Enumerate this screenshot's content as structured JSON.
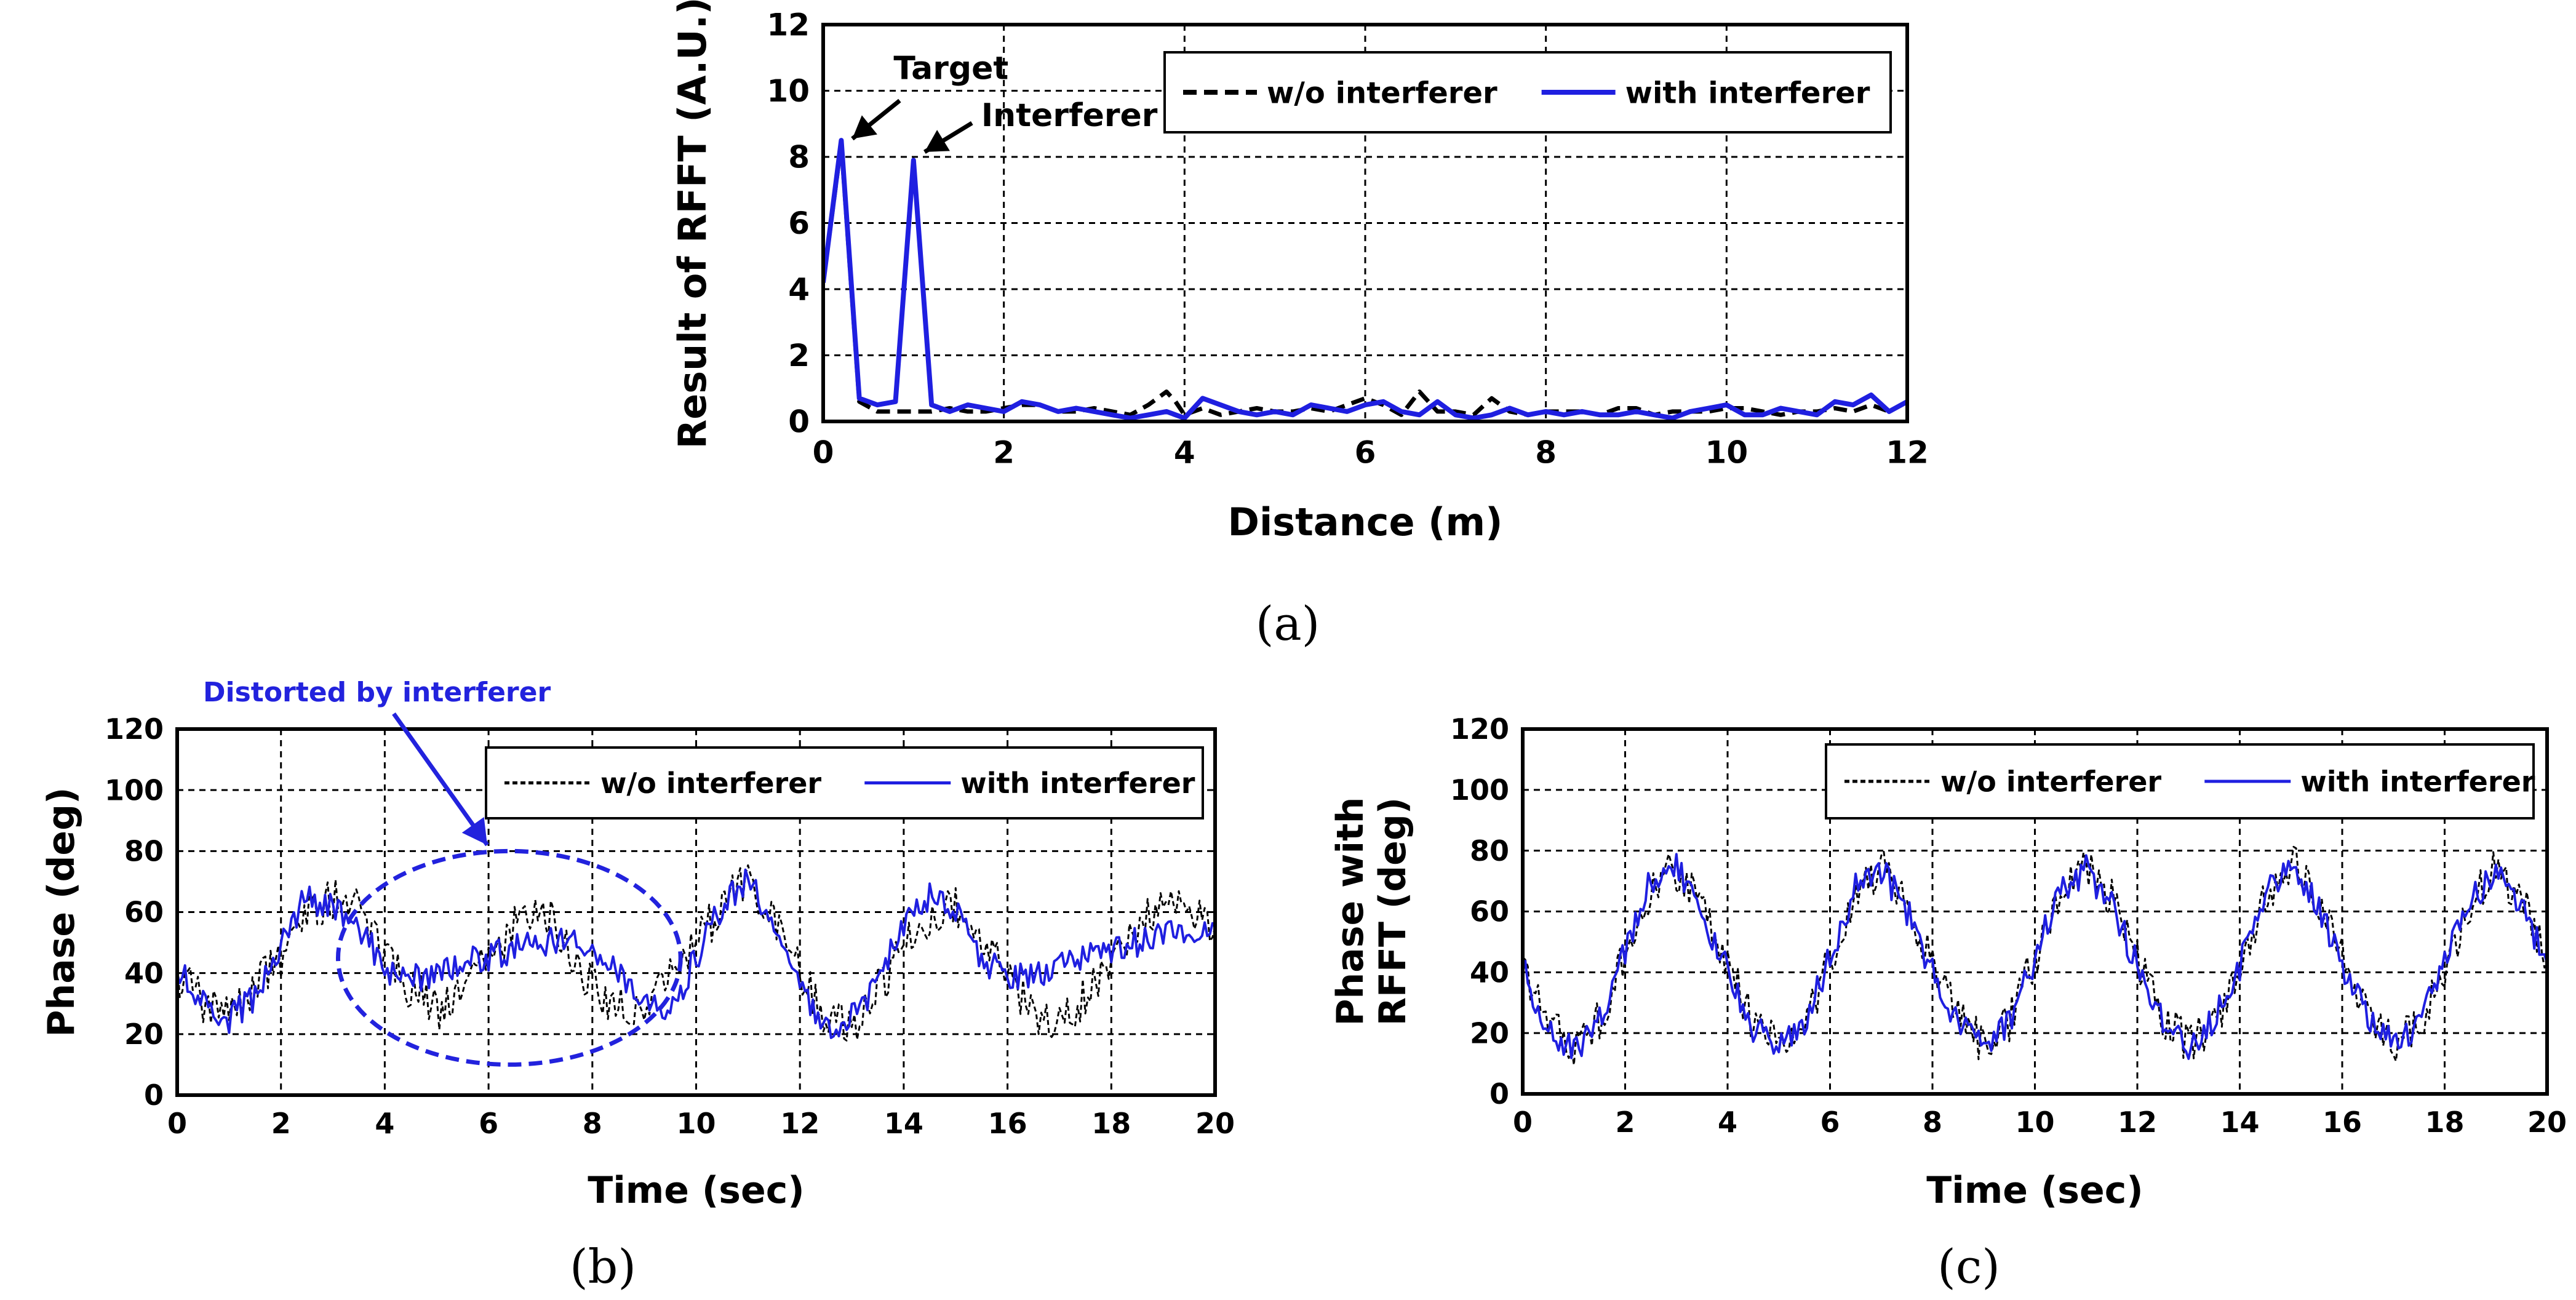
{
  "colors": {
    "without": "#000000",
    "with": "#1f1fe0",
    "annotation_blue": "#2222dd",
    "grid": "#000000"
  },
  "chart_data": [
    {
      "id": "a",
      "type": "line",
      "caption": "(a)",
      "xlabel": "Distance (m)",
      "ylabel": "Result of RFFT (A.U.)",
      "xlim": [
        0,
        12
      ],
      "ylim": [
        0,
        12
      ],
      "xticks": [
        "0",
        "2",
        "4",
        "6",
        "8",
        "10",
        "12"
      ],
      "yticks": [
        "0",
        "2",
        "4",
        "6",
        "8",
        "10",
        "12"
      ],
      "grid": true,
      "legend_position": "top-right",
      "annotations": [
        {
          "text": "Target",
          "x": 0.2,
          "y": 8.4
        },
        {
          "text": "Interferer",
          "x": 1.0,
          "y": 8.0
        }
      ],
      "series": [
        {
          "name": "w/o interferer",
          "style": "dashed",
          "x": [
            0,
            0.2,
            0.4,
            0.6,
            0.8,
            1.0,
            1.2,
            1.4,
            1.6,
            1.8,
            2.0,
            2.2,
            2.4,
            2.6,
            2.8,
            3.0,
            3.2,
            3.4,
            3.6,
            3.8,
            3.9,
            4.0,
            4.2,
            4.4,
            4.6,
            4.8,
            5.0,
            5.2,
            5.4,
            5.6,
            5.8,
            6.0,
            6.2,
            6.4,
            6.6,
            6.8,
            7.0,
            7.2,
            7.4,
            7.6,
            7.8,
            8.0,
            8.2,
            8.4,
            8.6,
            8.8,
            9.0,
            9.2,
            9.4,
            9.6,
            9.8,
            10.0,
            10.2,
            10.4,
            10.6,
            10.8,
            11.0,
            11.2,
            11.4,
            11.6,
            11.8,
            12.0
          ],
          "values": [
            4.2,
            8.4,
            0.6,
            0.3,
            0.3,
            0.3,
            0.3,
            0.4,
            0.3,
            0.3,
            0.4,
            0.5,
            0.5,
            0.3,
            0.3,
            0.4,
            0.3,
            0.2,
            0.5,
            0.9,
            0.6,
            0.2,
            0.4,
            0.2,
            0.3,
            0.4,
            0.3,
            0.3,
            0.4,
            0.3,
            0.5,
            0.7,
            0.5,
            0.2,
            0.9,
            0.3,
            0.3,
            0.2,
            0.7,
            0.3,
            0.2,
            0.3,
            0.3,
            0.3,
            0.2,
            0.4,
            0.4,
            0.2,
            0.3,
            0.3,
            0.3,
            0.4,
            0.4,
            0.3,
            0.2,
            0.3,
            0.3,
            0.4,
            0.3,
            0.5,
            0.3,
            0.6
          ]
        },
        {
          "name": "with interferer",
          "style": "solid",
          "x": [
            0,
            0.2,
            0.4,
            0.6,
            0.8,
            1.0,
            1.2,
            1.4,
            1.6,
            1.8,
            2.0,
            2.2,
            2.4,
            2.6,
            2.8,
            3.0,
            3.2,
            3.4,
            3.6,
            3.8,
            4.0,
            4.2,
            4.4,
            4.6,
            4.8,
            5.0,
            5.2,
            5.4,
            5.6,
            5.8,
            6.0,
            6.2,
            6.4,
            6.6,
            6.8,
            7.0,
            7.2,
            7.4,
            7.6,
            7.8,
            8.0,
            8.2,
            8.4,
            8.6,
            8.8,
            9.0,
            9.2,
            9.4,
            9.6,
            9.8,
            10.0,
            10.2,
            10.4,
            10.6,
            10.8,
            11.0,
            11.2,
            11.4,
            11.6,
            11.8,
            12.0
          ],
          "values": [
            4.2,
            8.5,
            0.7,
            0.5,
            0.6,
            7.9,
            0.5,
            0.3,
            0.5,
            0.4,
            0.3,
            0.6,
            0.5,
            0.3,
            0.4,
            0.3,
            0.2,
            0.1,
            0.2,
            0.3,
            0.1,
            0.7,
            0.5,
            0.3,
            0.2,
            0.3,
            0.2,
            0.5,
            0.4,
            0.3,
            0.5,
            0.6,
            0.3,
            0.2,
            0.6,
            0.2,
            0.1,
            0.2,
            0.4,
            0.2,
            0.3,
            0.2,
            0.3,
            0.2,
            0.2,
            0.3,
            0.2,
            0.1,
            0.3,
            0.4,
            0.5,
            0.2,
            0.2,
            0.4,
            0.3,
            0.2,
            0.6,
            0.5,
            0.8,
            0.3,
            0.6
          ]
        }
      ]
    },
    {
      "id": "b",
      "type": "line",
      "caption": "(b)",
      "xlabel": "Time (sec)",
      "ylabel": "Phase (deg)",
      "xlim": [
        0,
        20
      ],
      "ylim": [
        0,
        120
      ],
      "xticks": [
        "0",
        "2",
        "4",
        "6",
        "8",
        "10",
        "12",
        "14",
        "16",
        "18",
        "20"
      ],
      "yticks": [
        "0",
        "20",
        "40",
        "60",
        "80",
        "100",
        "120"
      ],
      "grid": true,
      "legend_position": "top-right",
      "annotations": [
        {
          "text": "Distorted by interferer",
          "x": 5.5,
          "y": 80
        }
      ],
      "highlight_ellipse": {
        "cx": 6.4,
        "cy": 45,
        "rx": 3.3,
        "ry": 35
      },
      "series": [
        {
          "name": "w/o interferer",
          "style": "dashed",
          "x": [
            0,
            0.5,
            1.0,
            1.5,
            2.0,
            2.5,
            3.0,
            3.5,
            4.0,
            4.5,
            5.0,
            5.5,
            6.0,
            6.5,
            7.0,
            7.5,
            8.0,
            8.5,
            9.0,
            9.5,
            10.0,
            10.5,
            11.0,
            11.5,
            12.0,
            12.5,
            13.0,
            13.5,
            14.0,
            14.5,
            15.0,
            15.5,
            16.0,
            16.5,
            17.0,
            17.5,
            18.0,
            18.5,
            19.0,
            19.5,
            20.0
          ],
          "values": [
            40,
            30,
            25,
            35,
            45,
            60,
            65,
            60,
            45,
            35,
            28,
            32,
            45,
            55,
            62,
            50,
            35,
            28,
            30,
            38,
            50,
            62,
            70,
            60,
            40,
            25,
            22,
            35,
            48,
            58,
            62,
            52,
            38,
            27,
            25,
            32,
            45,
            55,
            62,
            60,
            55
          ]
        },
        {
          "name": "with interferer",
          "style": "solid",
          "x": [
            0,
            0.5,
            1.0,
            1.5,
            2.0,
            2.5,
            3.0,
            3.5,
            4.0,
            4.5,
            5.0,
            5.5,
            6.0,
            6.5,
            7.0,
            7.5,
            8.0,
            8.5,
            9.0,
            9.5,
            10.0,
            10.5,
            11.0,
            11.5,
            12.0,
            12.5,
            13.0,
            13.5,
            14.0,
            14.5,
            15.0,
            15.5,
            16.0,
            16.5,
            17.0,
            17.5,
            18.0,
            18.5,
            19.0,
            19.5,
            20.0
          ],
          "values": [
            40,
            32,
            25,
            32,
            50,
            65,
            62,
            55,
            42,
            38,
            40,
            45,
            45,
            48,
            50,
            52,
            48,
            40,
            32,
            28,
            45,
            62,
            70,
            58,
            35,
            22,
            25,
            38,
            55,
            65,
            62,
            45,
            38,
            40,
            42,
            45,
            48,
            50,
            52,
            55,
            55
          ]
        }
      ]
    },
    {
      "id": "c",
      "type": "line",
      "caption": "(c)",
      "xlabel": "Time (sec)",
      "ylabel": "Phase with RFFT (deg)",
      "xlim": [
        0,
        20
      ],
      "ylim": [
        0,
        120
      ],
      "xticks": [
        "0",
        "2",
        "4",
        "6",
        "8",
        "10",
        "12",
        "14",
        "16",
        "18",
        "20"
      ],
      "yticks": [
        "0",
        "20",
        "40",
        "60",
        "80",
        "100",
        "120"
      ],
      "grid": true,
      "legend_position": "top-right",
      "series": [
        {
          "name": "w/o interferer",
          "style": "dashed",
          "x": [
            0,
            0.5,
            1.0,
            1.5,
            2.0,
            2.5,
            3.0,
            3.5,
            4.0,
            4.5,
            5.0,
            5.5,
            6.0,
            6.5,
            7.0,
            7.5,
            8.0,
            8.5,
            9.0,
            9.5,
            10.0,
            10.5,
            11.0,
            11.5,
            12.0,
            12.5,
            13.0,
            13.5,
            14.0,
            14.5,
            15.0,
            15.5,
            16.0,
            16.5,
            17.0,
            17.5,
            18.0,
            18.5,
            19.0,
            19.5,
            20.0
          ],
          "values": [
            42,
            22,
            15,
            25,
            45,
            68,
            74,
            62,
            42,
            24,
            15,
            24,
            43,
            66,
            75,
            62,
            42,
            25,
            16,
            24,
            44,
            65,
            75,
            64,
            44,
            25,
            16,
            22,
            40,
            65,
            76,
            65,
            45,
            26,
            17,
            22,
            42,
            62,
            74,
            65,
            45
          ]
        },
        {
          "name": "with interferer",
          "style": "solid",
          "x": [
            0,
            0.5,
            1.0,
            1.5,
            2.0,
            2.5,
            3.0,
            3.5,
            4.0,
            4.5,
            5.0,
            5.5,
            6.0,
            6.5,
            7.0,
            7.5,
            8.0,
            8.5,
            9.0,
            9.5,
            10.0,
            10.5,
            11.0,
            11.5,
            12.0,
            12.5,
            13.0,
            13.5,
            14.0,
            14.5,
            15.0,
            15.5,
            16.0,
            16.5,
            17.0,
            17.5,
            18.0,
            18.5,
            19.0,
            19.5,
            20.0
          ],
          "values": [
            42,
            20,
            14,
            24,
            47,
            70,
            75,
            60,
            40,
            22,
            14,
            23,
            45,
            68,
            74,
            60,
            40,
            23,
            15,
            23,
            45,
            67,
            74,
            62,
            42,
            23,
            15,
            24,
            42,
            66,
            77,
            63,
            43,
            24,
            16,
            22,
            44,
            64,
            73,
            62,
            43
          ]
        }
      ]
    }
  ]
}
